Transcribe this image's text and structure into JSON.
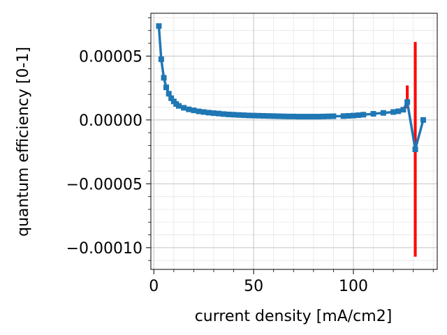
{
  "chart_data": {
    "type": "line",
    "title": "",
    "xlabel": "current density [mA/cm2]",
    "ylabel": "quantum efficiency [0-1]",
    "xlim": [
      -1.5,
      142
    ],
    "ylim": [
      -0.000117,
      8.35e-05
    ],
    "x_ticks": [
      0,
      50,
      100
    ],
    "x_tick_labels": [
      "0",
      "50",
      "100"
    ],
    "y_ticks": [
      5e-05,
      0.0,
      -5e-05,
      -0.0001
    ],
    "y_tick_labels": [
      "0.00005",
      "0.00000",
      "−0.00005",
      "−0.00010"
    ],
    "grid": true,
    "minor_grid": true,
    "series": [
      {
        "color": "#1f77b4",
        "marker": "square",
        "x": [
          2.5,
          3.7,
          5.0,
          6.2,
          7.5,
          8.7,
          10.0,
          11.2,
          12.5,
          15.0,
          17.5,
          20.0,
          22.5,
          25.0,
          27.5,
          30.0,
          32.5,
          35.0,
          37.5,
          40.0,
          42.5,
          45.0,
          47.5,
          50.0,
          52.5,
          55.0,
          57.5,
          60.0,
          62.5,
          65.0,
          67.5,
          70.0,
          72.5,
          75.0,
          77.5,
          80.0,
          82.5,
          85.0,
          87.5,
          90.0,
          95.0,
          97.5,
          100.0,
          102.5,
          105.0,
          110.0,
          115.0,
          120.0,
          122.5,
          125.0,
          127.0,
          131.0,
          135.0
        ],
        "y": [
          7.35e-05,
          4.75e-05,
          3.3e-05,
          2.55e-05,
          2.05e-05,
          1.7e-05,
          1.45e-05,
          1.25e-05,
          1.1e-05,
          9.5e-06,
          8.3e-06,
          7.5e-06,
          6.7e-06,
          6.2e-06,
          5.7e-06,
          5.3e-06,
          5e-06,
          4.6e-06,
          4.3e-06,
          4.1e-06,
          3.9e-06,
          3.7e-06,
          3.5e-06,
          3.4e-06,
          3.3e-06,
          3.2e-06,
          3.1e-06,
          3e-06,
          2.9e-06,
          2.8e-06,
          2.7e-06,
          2.7e-06,
          2.6e-06,
          2.6e-06,
          2.6e-06,
          2.6e-06,
          2.6e-06,
          2.7e-06,
          2.8e-06,
          2.9e-06,
          3e-06,
          3.2e-06,
          3.4e-06,
          3.7e-06,
          4.1e-06,
          4.8e-06,
          5.5e-06,
          6.2e-06,
          6.8e-06,
          8e-06,
          1.4e-05,
          -2.3e-05,
          0.0
        ]
      }
    ],
    "error_bars": {
      "color": "#ff0000",
      "bars": [
        {
          "x": 127.0,
          "low": 9e-06,
          "high": 2.7e-05
        },
        {
          "x": 131.0,
          "low": -0.000107,
          "high": 6.1e-05
        }
      ]
    }
  }
}
